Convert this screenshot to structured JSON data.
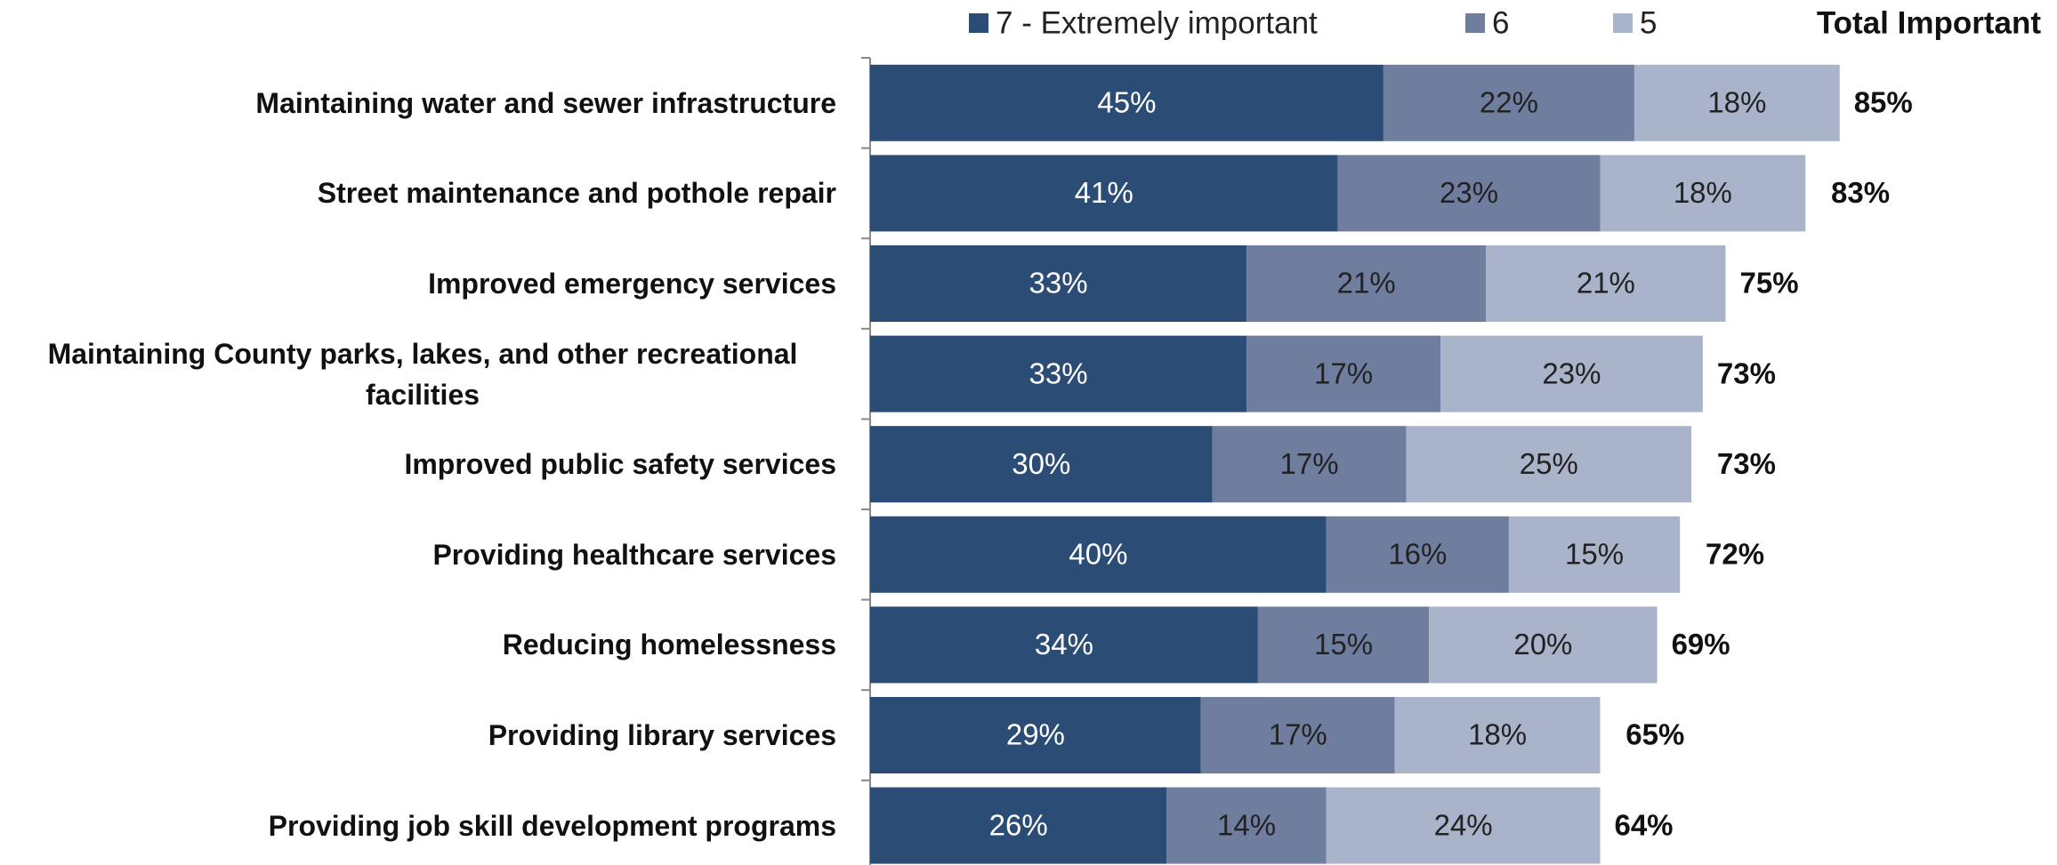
{
  "chart_data": {
    "type": "stacked-bar-horizontal",
    "categories": [
      "Maintaining water and sewer infrastructure",
      "Street maintenance and pothole repair",
      "Improved emergency services",
      "Maintaining County parks, lakes, and other recreational facilities",
      "Improved public safety services",
      "Providing healthcare services",
      "Reducing homelessness",
      "Providing library services",
      "Providing job skill development programs"
    ],
    "series": [
      {
        "name": "7 - Extremely important",
        "color": "#2b4c75",
        "values": [
          45,
          41,
          33,
          33,
          30,
          40,
          34,
          29,
          26
        ],
        "value_labels": [
          "45%",
          "41%",
          "33%",
          "33%",
          "30%",
          "40%",
          "34%",
          "29%",
          "26%"
        ]
      },
      {
        "name": "6",
        "color": "#6f7e9f",
        "values": [
          22,
          23,
          21,
          17,
          17,
          16,
          15,
          17,
          14
        ],
        "value_labels": [
          "22%",
          "23%",
          "21%",
          "17%",
          "17%",
          "16%",
          "15%",
          "17%",
          "14%"
        ]
      },
      {
        "name": "5",
        "color": "#a9b3c9",
        "values": [
          18,
          18,
          21,
          23,
          25,
          15,
          20,
          18,
          24
        ],
        "value_labels": [
          "18%",
          "18%",
          "21%",
          "23%",
          "25%",
          "15%",
          "20%",
          "18%",
          "24%"
        ]
      }
    ],
    "totals": {
      "name": "Total Important",
      "values": [
        85,
        83,
        75,
        73,
        73,
        72,
        69,
        65,
        64
      ],
      "value_labels": [
        "85%",
        "83%",
        "75%",
        "73%",
        "73%",
        "72%",
        "69%",
        "65%",
        "64%"
      ]
    },
    "xlim": [
      0,
      100
    ],
    "legend": "top"
  }
}
